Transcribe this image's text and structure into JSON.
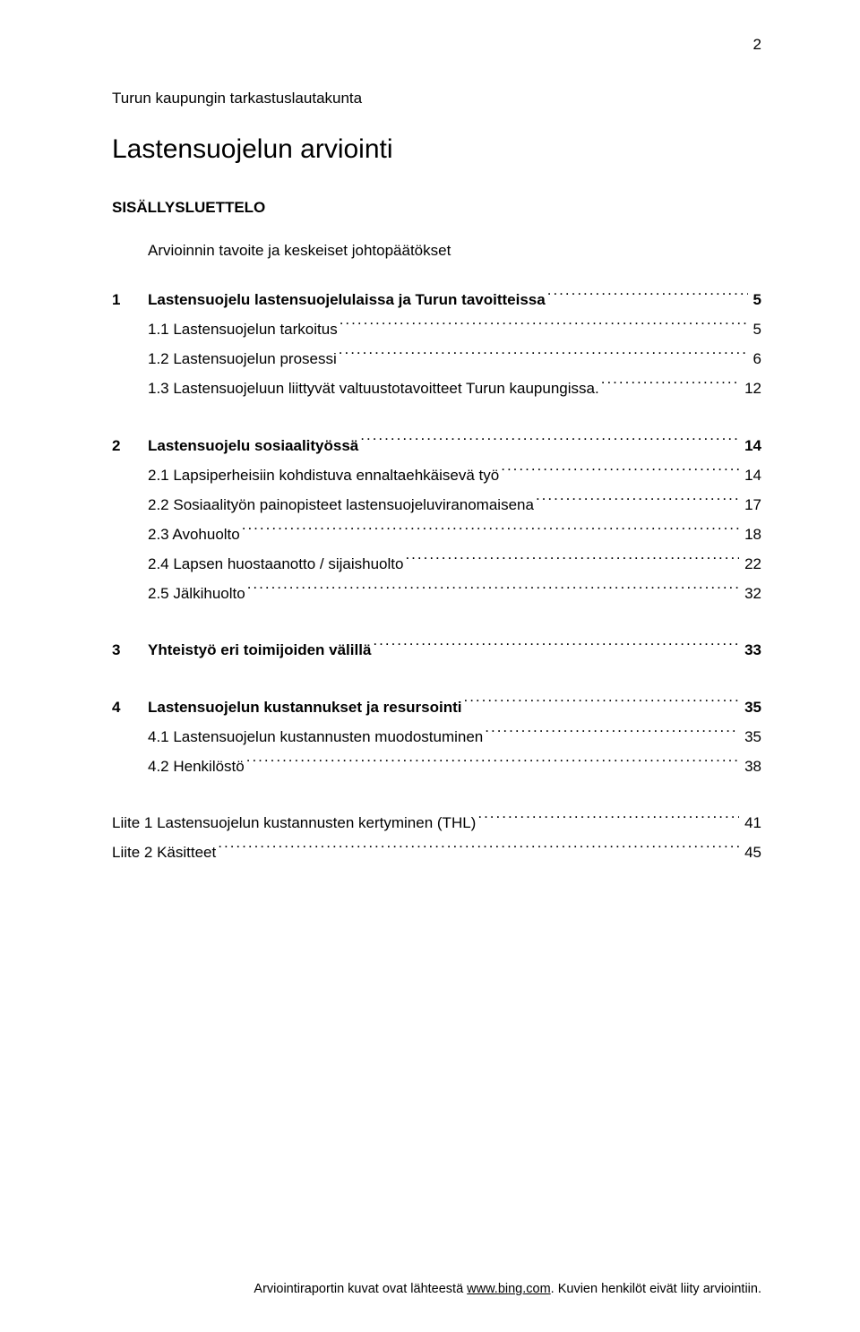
{
  "page_number": "2",
  "org_name": "Turun kaupungin tarkastuslautakunta",
  "doc_title": "Lastensuojelun arviointi",
  "toc_heading": "SISÄLLYSLUETTELO",
  "toc_intro": "Arvioinnin tavoite ja keskeiset johtopäätökset",
  "sections": [
    {
      "num": "1",
      "label": "Lastensuojelu lastensuojelulaissa ja Turun tavoitteissa",
      "page": "5",
      "bold": true,
      "subs": [
        {
          "label": "1.1 Lastensuojelun tarkoitus",
          "page": "5"
        },
        {
          "label": "1.2 Lastensuojelun prosessi",
          "page": "6"
        },
        {
          "label": "1.3 Lastensuojeluun liittyvät valtuustotavoitteet Turun kaupungissa.",
          "page": "12"
        }
      ]
    },
    {
      "num": "2",
      "label": "Lastensuojelu sosiaalityössä",
      "page": "14",
      "bold": true,
      "subs": [
        {
          "label": "2.1 Lapsiperheisiin kohdistuva ennaltaehkäisevä työ",
          "page": "14"
        },
        {
          "label": "2.2 Sosiaalityön painopisteet lastensuojeluviranomaisena",
          "page": "17"
        },
        {
          "label": "2.3 Avohuolto",
          "page": "18"
        },
        {
          "label": "2.4 Lapsen huostaanotto / sijaishuolto",
          "page": "22"
        },
        {
          "label": "2.5 Jälkihuolto",
          "page": "32"
        }
      ]
    },
    {
      "num": "3",
      "label": "Yhteistyö eri toimijoiden välillä",
      "page": "33",
      "bold": true,
      "subs": []
    },
    {
      "num": "4",
      "label": "Lastensuojelun kustannukset ja resursointi",
      "page": "35",
      "bold": true,
      "subs": [
        {
          "label": "4.1 Lastensuojelun kustannusten muodostuminen",
          "page": "35"
        },
        {
          "label": "4.2 Henkilöstö",
          "page": "38"
        }
      ]
    }
  ],
  "appendices": [
    {
      "label": "Liite 1 Lastensuojelun kustannusten kertyminen (THL)",
      "page": "41"
    },
    {
      "label": "Liite 2 Käsitteet",
      "page": "45"
    }
  ],
  "footer": {
    "prefix": "Arviointiraportin kuvat ovat lähteestä ",
    "link": "www.bing.com",
    "suffix": ". Kuvien henkilöt eivät liity arviointiin."
  }
}
